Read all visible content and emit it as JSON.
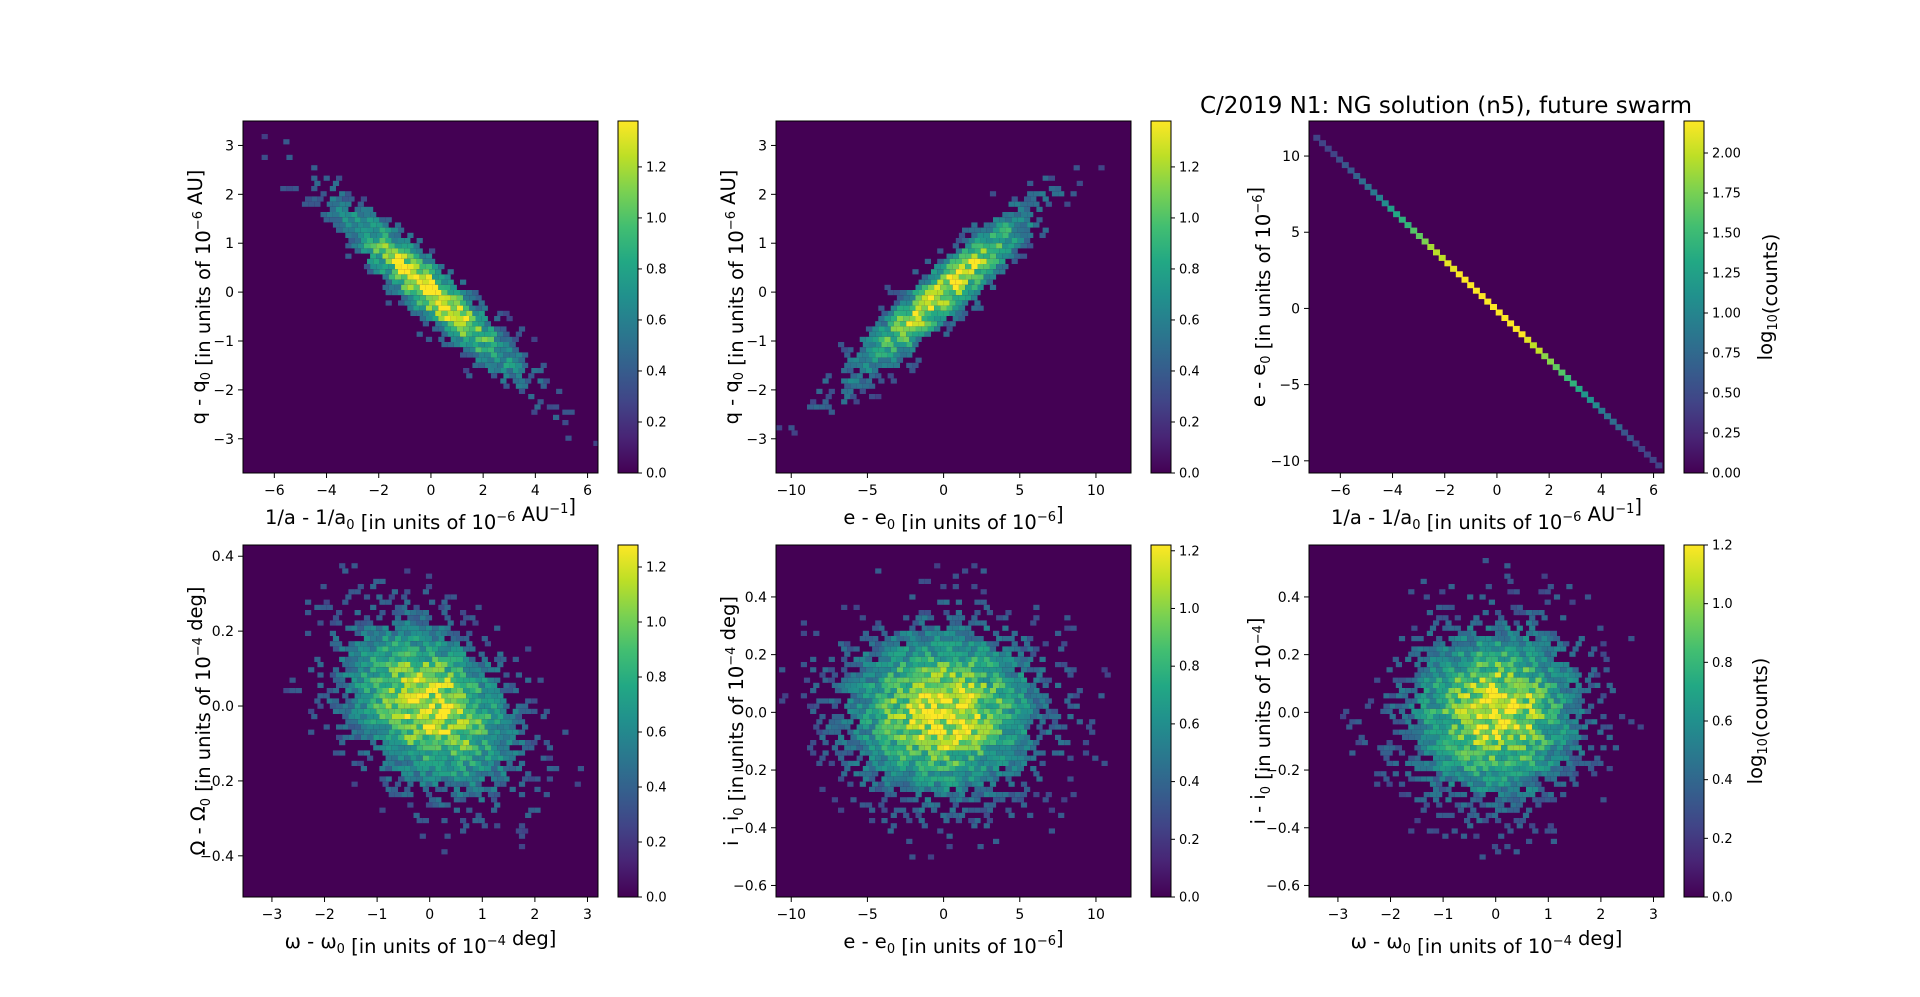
{
  "figure": {
    "title": "C/2019 N1: NG solution (n5),  future swarm"
  },
  "chart_data": [
    {
      "type": "heatmap",
      "id": "p1",
      "xlabel": "1/a - 1/a₀ [in units of 10⁻⁶ AU⁻¹]",
      "ylabel": "q - q₀ [in units of 10⁻⁶ AU]",
      "xlim": [
        -7.2,
        6.4
      ],
      "ylim": [
        -3.7,
        3.5
      ],
      "xticks": [
        "-6",
        "-4",
        "-2",
        "0",
        "2",
        "4",
        "6"
      ],
      "xtick_values": [
        -6,
        -4,
        -2,
        0,
        2,
        4,
        6
      ],
      "yticks": [
        "-3",
        "-2",
        "-1",
        "0",
        "1",
        "2",
        "3"
      ],
      "ytick_values": [
        -3,
        -2,
        -1,
        0,
        1,
        2,
        3
      ],
      "colorbar": {
        "range": [
          0,
          1.38
        ],
        "ticks": [
          "0.0",
          "0.2",
          "0.4",
          "0.6",
          "0.8",
          "1.0",
          "1.2"
        ],
        "tick_values": [
          0,
          0.2,
          0.4,
          0.6,
          0.8,
          1.0,
          1.2
        ],
        "label": ""
      },
      "distribution": {
        "center": [
          0,
          0
        ],
        "sigma": [
          2.1,
          1.05
        ],
        "correlation": -0.93,
        "peak": 1.38
      }
    },
    {
      "type": "heatmap",
      "id": "p2",
      "xlabel": "e - e₀ [in units of 10⁻⁶]",
      "ylabel": "q - q₀ [in units of 10⁻⁶ AU]",
      "xlim": [
        -11,
        12.3
      ],
      "ylim": [
        -3.7,
        3.5
      ],
      "xticks": [
        "-10",
        "-5",
        "0",
        "5",
        "10"
      ],
      "xtick_values": [
        -10,
        -5,
        0,
        5,
        10
      ],
      "yticks": [
        "-3",
        "-2",
        "-1",
        "0",
        "1",
        "2",
        "3"
      ],
      "ytick_values": [
        -3,
        -2,
        -1,
        0,
        1,
        2,
        3
      ],
      "colorbar": {
        "range": [
          0,
          1.38
        ],
        "ticks": [
          "0.0",
          "0.2",
          "0.4",
          "0.6",
          "0.8",
          "1.0",
          "1.2"
        ],
        "tick_values": [
          0,
          0.2,
          0.4,
          0.6,
          0.8,
          1.0,
          1.2
        ],
        "label": ""
      },
      "distribution": {
        "center": [
          0,
          0
        ],
        "sigma": [
          3.6,
          1.05
        ],
        "correlation": 0.93,
        "peak": 1.38
      }
    },
    {
      "type": "heatmap",
      "id": "p3",
      "xlabel": "1/a - 1/a₀ [in units of 10⁻⁶ AU⁻¹]",
      "ylabel": "e - e₀ [in units of 10⁻⁶]",
      "xlim": [
        -7.2,
        6.4
      ],
      "ylim": [
        -10.8,
        12.3
      ],
      "xticks": [
        "-6",
        "-4",
        "-2",
        "0",
        "2",
        "4",
        "6"
      ],
      "xtick_values": [
        -6,
        -4,
        -2,
        0,
        2,
        4,
        6
      ],
      "yticks": [
        "-10",
        "-5",
        "0",
        "5",
        "10"
      ],
      "ytick_values": [
        -10,
        -5,
        0,
        5,
        10
      ],
      "colorbar": {
        "range": [
          0,
          2.2
        ],
        "ticks": [
          "0.00",
          "0.25",
          "0.50",
          "0.75",
          "1.00",
          "1.25",
          "1.50",
          "1.75",
          "2.00"
        ],
        "tick_values": [
          0,
          0.25,
          0.5,
          0.75,
          1.0,
          1.25,
          1.5,
          1.75,
          2.0
        ],
        "label": "log₁₀(counts)"
      },
      "line": {
        "x": [
          -6.9,
          6.2
        ],
        "y": [
          11.2,
          -10.3
        ],
        "peak": 2.2
      }
    },
    {
      "type": "heatmap",
      "id": "p4",
      "xlabel": "ω - ω₀ [in units of 10⁻⁴ deg]",
      "ylabel": "Ω - Ω₀ [in units of 10⁻⁴ deg]",
      "xlim": [
        -3.55,
        3.2
      ],
      "ylim": [
        -0.51,
        0.43
      ],
      "xticks": [
        "-3",
        "-2",
        "-1",
        "0",
        "1",
        "2",
        "3"
      ],
      "xtick_values": [
        -3,
        -2,
        -1,
        0,
        1,
        2,
        3
      ],
      "yticks": [
        "-0.4",
        "-0.2",
        "0.0",
        "0.2",
        "0.4"
      ],
      "ytick_values": [
        -0.4,
        -0.2,
        0.0,
        0.2,
        0.4
      ],
      "colorbar": {
        "range": [
          0,
          1.28
        ],
        "ticks": [
          "0.0",
          "0.2",
          "0.4",
          "0.6",
          "0.8",
          "1.0",
          "1.2"
        ],
        "tick_values": [
          0,
          0.2,
          0.4,
          0.6,
          0.8,
          1.0,
          1.2
        ],
        "label": ""
      },
      "distribution": {
        "center": [
          0,
          0
        ],
        "sigma": [
          0.95,
          0.13
        ],
        "correlation": -0.35,
        "peak": 1.28
      }
    },
    {
      "type": "heatmap",
      "id": "p5",
      "xlabel": "e - e₀ [in units of 10⁻⁶]",
      "ylabel": "i - i₀ [in units of 10⁻⁴ deg]",
      "xlim": [
        -11,
        12.3
      ],
      "ylim": [
        -0.64,
        0.58
      ],
      "xticks": [
        "-10",
        "-5",
        "0",
        "5",
        "10"
      ],
      "xtick_values": [
        -10,
        -5,
        0,
        5,
        10
      ],
      "yticks": [
        "-0.6",
        "-0.4",
        "-0.2",
        "0.0",
        "0.2",
        "0.4"
      ],
      "ytick_values": [
        -0.6,
        -0.4,
        -0.2,
        0.0,
        0.2,
        0.4
      ],
      "colorbar": {
        "range": [
          0,
          1.22
        ],
        "ticks": [
          "0.0",
          "0.2",
          "0.4",
          "0.6",
          "0.8",
          "1.0",
          "1.2"
        ],
        "tick_values": [
          0,
          0.2,
          0.4,
          0.6,
          0.8,
          1.0,
          1.2
        ],
        "label": ""
      },
      "distribution": {
        "center": [
          0,
          0
        ],
        "sigma": [
          3.7,
          0.17
        ],
        "correlation": 0.0,
        "peak": 1.22
      }
    },
    {
      "type": "heatmap",
      "id": "p6",
      "xlabel": "ω - ω₀ [in units of 10⁻⁴ deg]",
      "ylabel": "i - i₀ [in units of 10⁻⁴]",
      "xlim": [
        -3.55,
        3.2
      ],
      "ylim": [
        -0.64,
        0.58
      ],
      "xticks": [
        "-3",
        "-2",
        "-1",
        "0",
        "1",
        "2",
        "3"
      ],
      "xtick_values": [
        -3,
        -2,
        -1,
        0,
        1,
        2,
        3
      ],
      "yticks": [
        "-0.6",
        "-0.4",
        "-0.2",
        "0.0",
        "0.2",
        "0.4"
      ],
      "ytick_values": [
        -0.6,
        -0.4,
        -0.2,
        0.0,
        0.2,
        0.4
      ],
      "colorbar": {
        "range": [
          0,
          1.2
        ],
        "ticks": [
          "0.0",
          "0.2",
          "0.4",
          "0.6",
          "0.8",
          "1.0",
          "1.2"
        ],
        "tick_values": [
          0,
          0.2,
          0.4,
          0.6,
          0.8,
          1.0,
          1.2
        ],
        "label": "log₁₀(counts)"
      },
      "distribution": {
        "center": [
          0,
          0
        ],
        "sigma": [
          0.95,
          0.17
        ],
        "correlation": 0.0,
        "peak": 1.2
      }
    }
  ]
}
